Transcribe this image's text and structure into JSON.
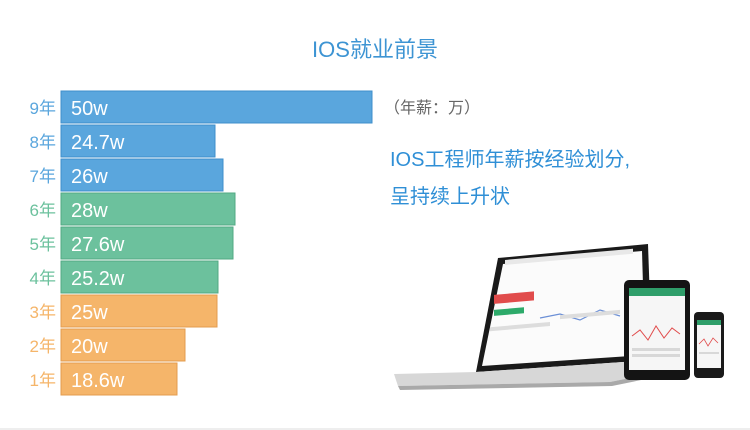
{
  "title": "IOS就业前景",
  "unit_note": "（年薪：万）",
  "description": [
    "IOS工程师年薪按经验划分,",
    "呈持续上升状"
  ],
  "colors": {
    "blue": "#5aa6dd",
    "green": "#6cc19d",
    "orange": "#f5b56a",
    "title": "#3d94d3"
  },
  "chart_data": {
    "type": "bar",
    "orientation": "horizontal",
    "unit": "w",
    "categories": [
      "9年",
      "8年",
      "7年",
      "6年",
      "5年",
      "4年",
      "3年",
      "2年",
      "1年"
    ],
    "values": [
      50,
      24.7,
      26,
      28,
      27.6,
      25.2,
      25,
      20,
      18.6
    ],
    "labels": [
      "50w",
      "24.7w",
      "26w",
      "28w",
      "27.6w",
      "25.2w",
      "25w",
      "20w",
      "18.6w"
    ],
    "groups": [
      "blue",
      "blue",
      "blue",
      "green",
      "green",
      "green",
      "orange",
      "orange",
      "orange"
    ],
    "xlim": [
      0,
      50
    ]
  }
}
